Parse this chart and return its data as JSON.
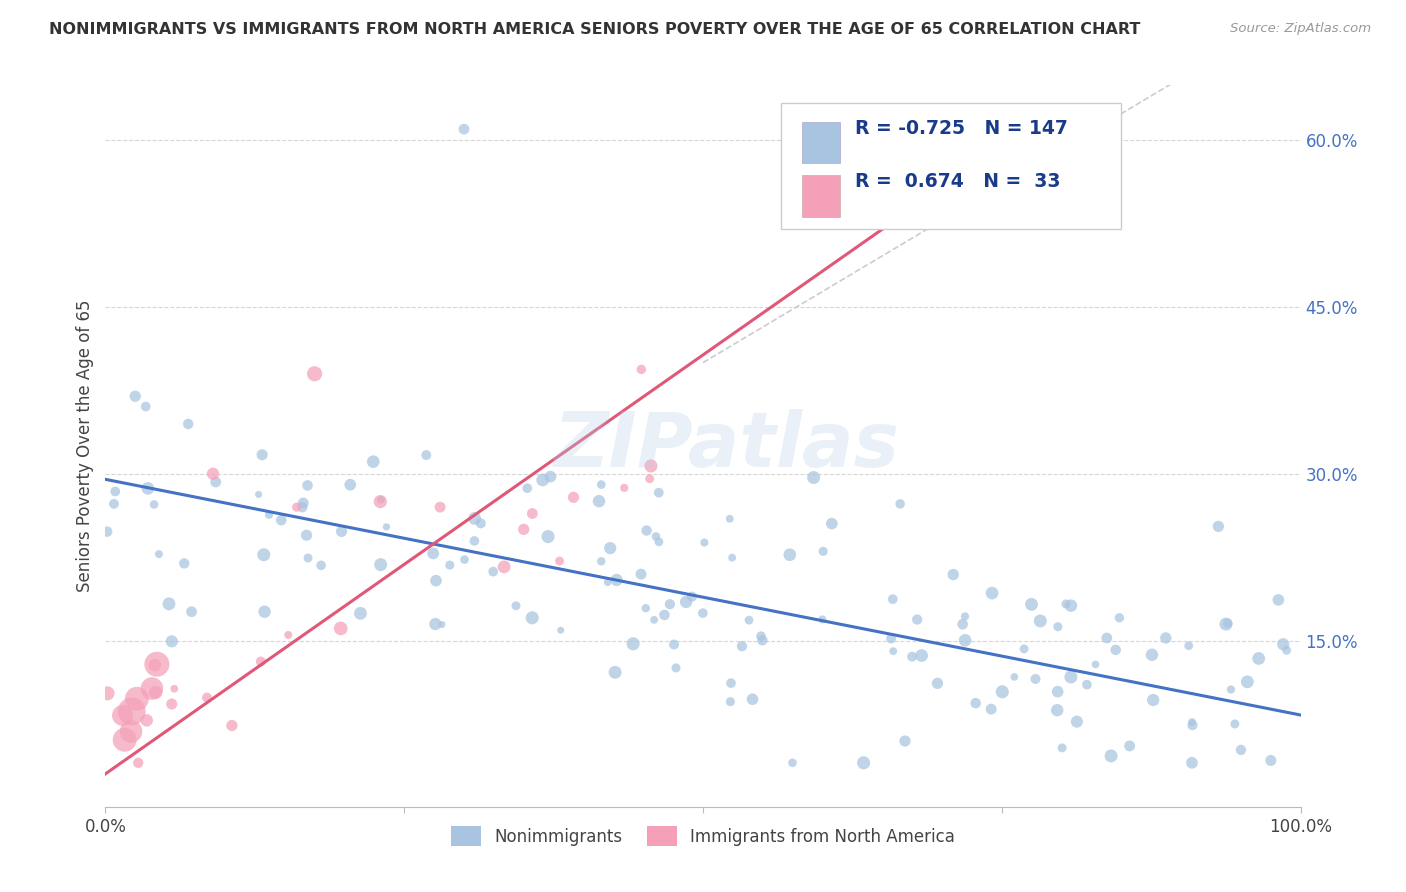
{
  "title": "NONIMMIGRANTS VS IMMIGRANTS FROM NORTH AMERICA SENIORS POVERTY OVER THE AGE OF 65 CORRELATION CHART",
  "source": "Source: ZipAtlas.com",
  "ylabel": "Seniors Poverty Over the Age of 65",
  "watermark": "ZIPatlas",
  "blue_R": -0.725,
  "blue_N": 147,
  "pink_R": 0.674,
  "pink_N": 33,
  "blue_color": "#a8c4e0",
  "pink_color": "#f4a0b8",
  "blue_line_color": "#4472c4",
  "pink_line_color": "#e05878",
  "title_color": "#333333",
  "source_color": "#999999",
  "legend_text_color": "#1a3a8a",
  "xlim": [
    0,
    1.0
  ],
  "ylim": [
    0,
    0.65
  ],
  "xtick_labels": [
    "0.0%",
    "",
    "",
    "",
    "100.0%"
  ],
  "ytick_labels_right": [
    "60.0%",
    "45.0%",
    "30.0%",
    "15.0%"
  ],
  "ytick_values_right": [
    0.6,
    0.45,
    0.3,
    0.15
  ],
  "grid_color": "#cccccc",
  "background_color": "#ffffff",
  "legend_label_blue": "Nonimmigrants",
  "legend_label_pink": "Immigrants from North America"
}
